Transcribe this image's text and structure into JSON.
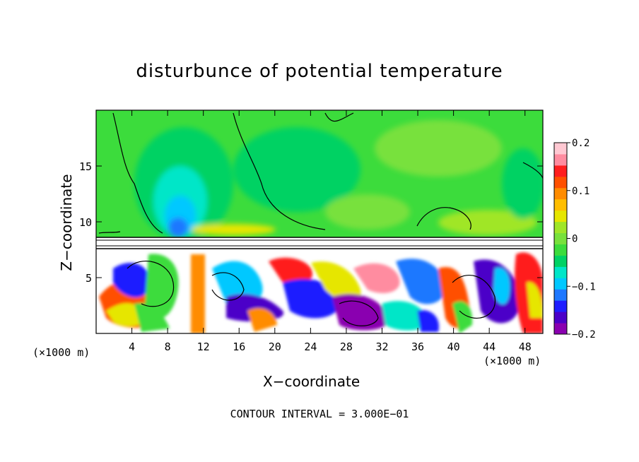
{
  "chart_data": {
    "type": "heatmap",
    "title": "disturbunce of potential temperature",
    "xlabel": "X−coordinate",
    "ylabel": "Z−coordinate",
    "x_unit_left": "(×1000 m)",
    "x_unit_right": "(×1000 m)",
    "footnote": "CONTOUR INTERVAL = 3.000E−01",
    "xlim": [
      0,
      50
    ],
    "ylim": [
      0,
      20
    ],
    "x_ticks": [
      "4",
      "8",
      "12",
      "16",
      "20",
      "24",
      "28",
      "32",
      "36",
      "40",
      "44",
      "48"
    ],
    "y_ticks": [
      "5",
      "10",
      "15"
    ],
    "colorbar": {
      "range": [
        -0.2,
        0.2
      ],
      "tick_labels": [
        "0.2",
        "0.1",
        "0",
        "−0.1",
        "−0.2"
      ],
      "tick_values": [
        0.2,
        0.1,
        0,
        -0.1,
        -0.2
      ],
      "colors": [
        "#8a00b0",
        "#4b00c8",
        "#1e1eff",
        "#1e78ff",
        "#00c8ff",
        "#00e6c8",
        "#00d264",
        "#3cdc3c",
        "#78e13c",
        "#a0e628",
        "#e6e600",
        "#ffbe00",
        "#ff8c00",
        "#ff5000",
        "#ff1e1e",
        "#ff8ca0",
        "#ffc8d2"
      ]
    },
    "regions": {
      "upper_layer_z": [
        8.8,
        20
      ],
      "white_band_z": [
        7.8,
        8.8
      ],
      "turbulent_layer_z": [
        0,
        7.8
      ]
    },
    "contour_interval": 0.3
  }
}
